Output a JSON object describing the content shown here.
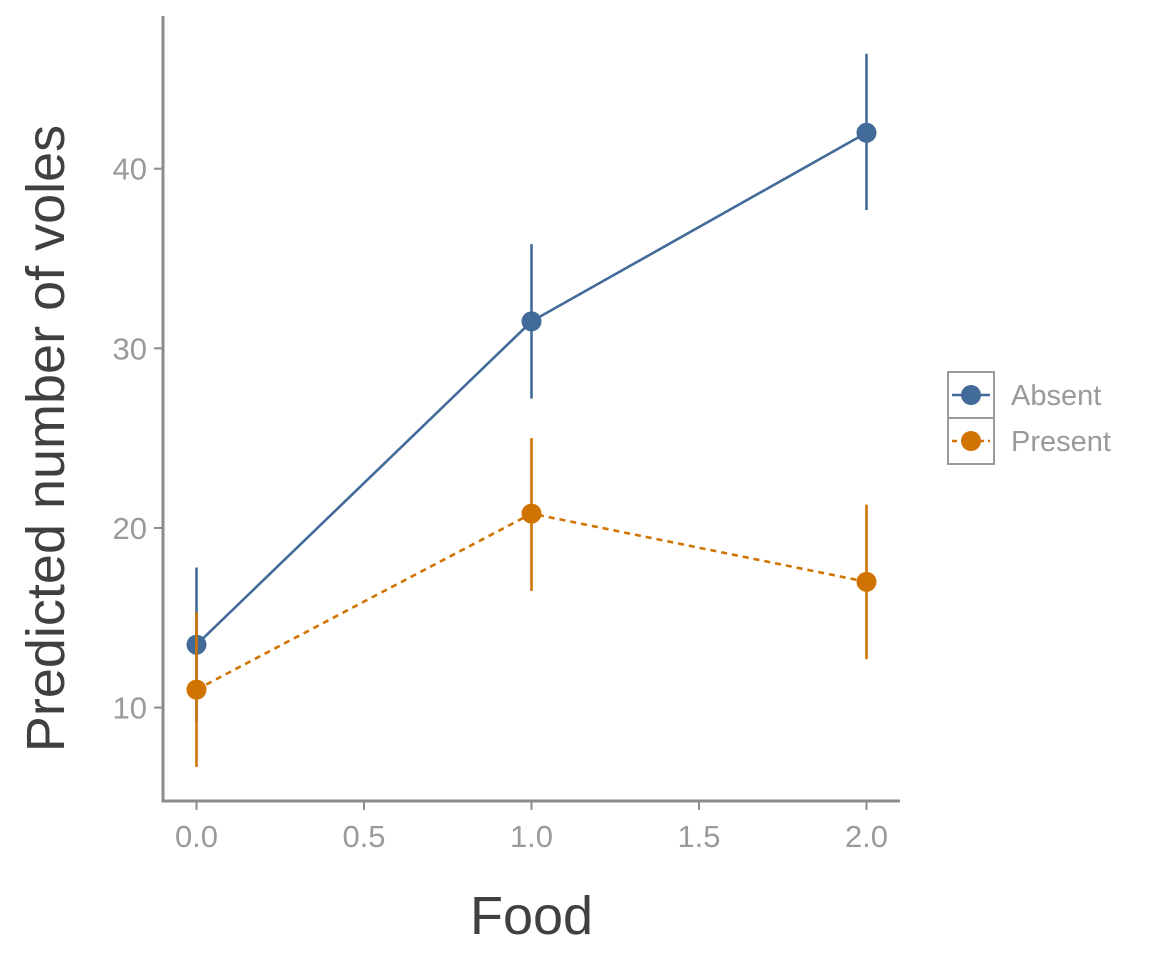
{
  "chart_data": {
    "type": "line",
    "title": "",
    "xlabel": "Food",
    "ylabel": "Predicted number of voles",
    "xlim": [
      -0.1,
      2.1
    ],
    "ylim": [
      4.8,
      48.5
    ],
    "x_ticks": [
      0.0,
      0.5,
      1.0,
      1.5,
      2.0
    ],
    "x_tick_labels": [
      "0.0",
      "0.5",
      "1.0",
      "1.5",
      "2.0"
    ],
    "y_ticks": [
      10,
      20,
      30,
      40
    ],
    "y_tick_labels": [
      "10",
      "20",
      "30",
      "40"
    ],
    "grid": false,
    "legend_position": "right",
    "series": [
      {
        "name": "Absent",
        "color": "#436b9a",
        "line_style": "solid",
        "x": [
          0.0,
          1.0,
          2.0
        ],
        "y": [
          13.5,
          31.5,
          42.0
        ],
        "y_lower": [
          9.2,
          27.2,
          37.7
        ],
        "y_upper": [
          17.8,
          35.8,
          46.4
        ]
      },
      {
        "name": "Present",
        "color": "#d17300",
        "line_style": "dashed",
        "x": [
          0.0,
          1.0,
          2.0
        ],
        "y": [
          11.0,
          20.8,
          17.0
        ],
        "y_lower": [
          6.7,
          16.5,
          12.7
        ],
        "y_upper": [
          15.3,
          25.0,
          21.3
        ]
      }
    ]
  }
}
